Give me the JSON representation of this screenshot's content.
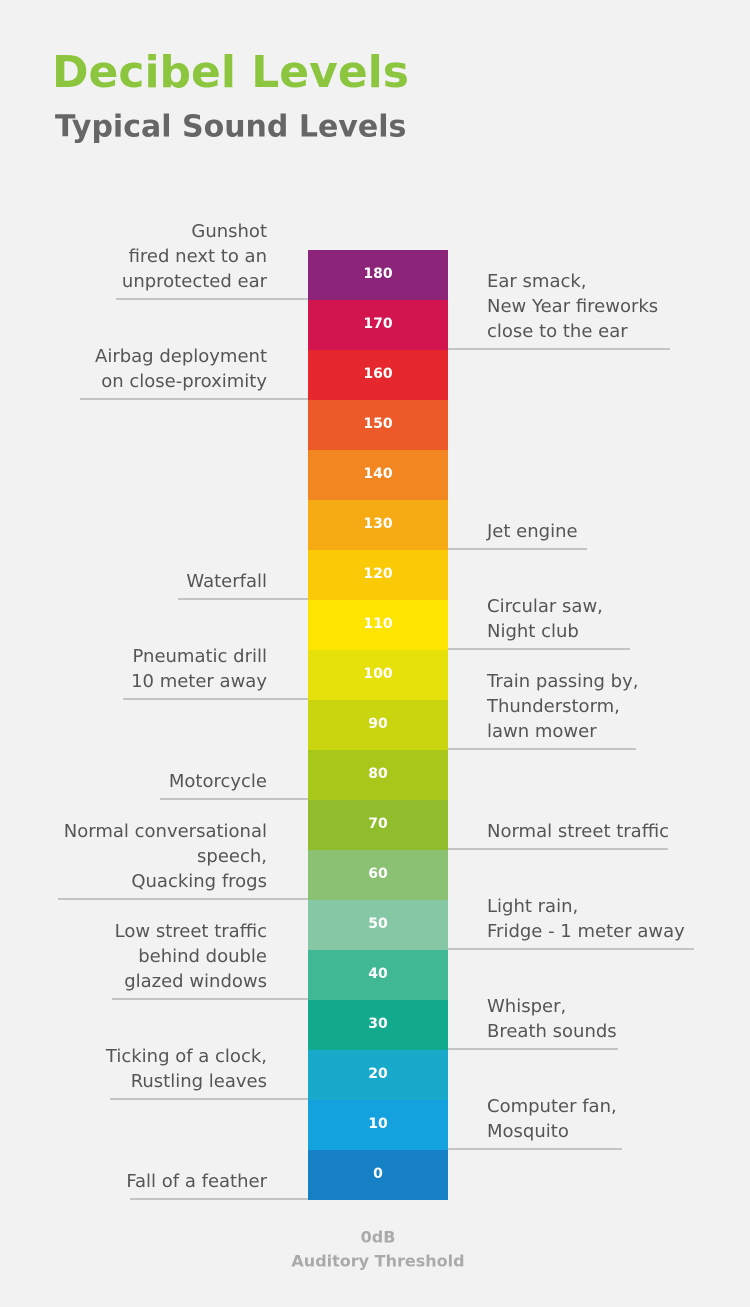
{
  "header": {
    "title": "Decibel Levels",
    "subtitle": "Typical Sound Levels"
  },
  "levels": [
    {
      "value": 180,
      "color": "#8c2479"
    },
    {
      "value": 170,
      "color": "#d2154f"
    },
    {
      "value": 160,
      "color": "#e6282e"
    },
    {
      "value": 150,
      "color": "#ed5a29"
    },
    {
      "value": 140,
      "color": "#f28722"
    },
    {
      "value": 130,
      "color": "#f6ab14"
    },
    {
      "value": 120,
      "color": "#fbca06"
    },
    {
      "value": 110,
      "color": "#fde500"
    },
    {
      "value": 100,
      "color": "#e6e00b"
    },
    {
      "value": 90,
      "color": "#c8d50f"
    },
    {
      "value": 80,
      "color": "#a8c71b"
    },
    {
      "value": 70,
      "color": "#8fbd2b"
    },
    {
      "value": 60,
      "color": "#8ac172"
    },
    {
      "value": 50,
      "color": "#86c8a5"
    },
    {
      "value": 40,
      "color": "#3fb893"
    },
    {
      "value": 30,
      "color": "#11aa8c"
    },
    {
      "value": 20,
      "color": "#18a9cb"
    },
    {
      "value": 10,
      "color": "#14a2de"
    },
    {
      "value": 0,
      "color": "#1580c3"
    }
  ],
  "left_notes": [
    {
      "lines": [
        "Gunshot",
        "fired next to an",
        "unprotected ear"
      ]
    },
    {
      "lines": [
        "Airbag deployment",
        "on close-proximity"
      ]
    },
    {
      "lines": [
        "Waterfall"
      ]
    },
    {
      "lines": [
        "Pneumatic drill",
        "10 meter away"
      ]
    },
    {
      "lines": [
        "Motorcycle"
      ]
    },
    {
      "lines": [
        "Normal conversational",
        "speech,",
        "Quacking frogs"
      ]
    },
    {
      "lines": [
        "Low street traffic",
        "behind double",
        "glazed windows"
      ]
    },
    {
      "lines": [
        "Ticking of a clock,",
        "Rustling leaves"
      ]
    },
    {
      "lines": [
        "Fall of a feather"
      ]
    }
  ],
  "right_notes": [
    {
      "lines": [
        "Ear smack,",
        "New Year fireworks",
        "close to the ear"
      ]
    },
    {
      "lines": [
        "Jet engine"
      ]
    },
    {
      "lines": [
        "Circular saw,",
        "Night club"
      ]
    },
    {
      "lines": [
        "Train passing by,",
        "Thunderstorm,",
        "lawn mower"
      ]
    },
    {
      "lines": [
        "Normal street traffic"
      ]
    },
    {
      "lines": [
        "Light rain,",
        "Fridge - 1 meter away"
      ]
    },
    {
      "lines": [
        "Whisper,",
        "Breath sounds"
      ]
    },
    {
      "lines": [
        "Computer fan,",
        "Mosquito"
      ]
    }
  ],
  "footer": {
    "lines": [
      "0dB",
      "Auditory Threshold"
    ]
  }
}
